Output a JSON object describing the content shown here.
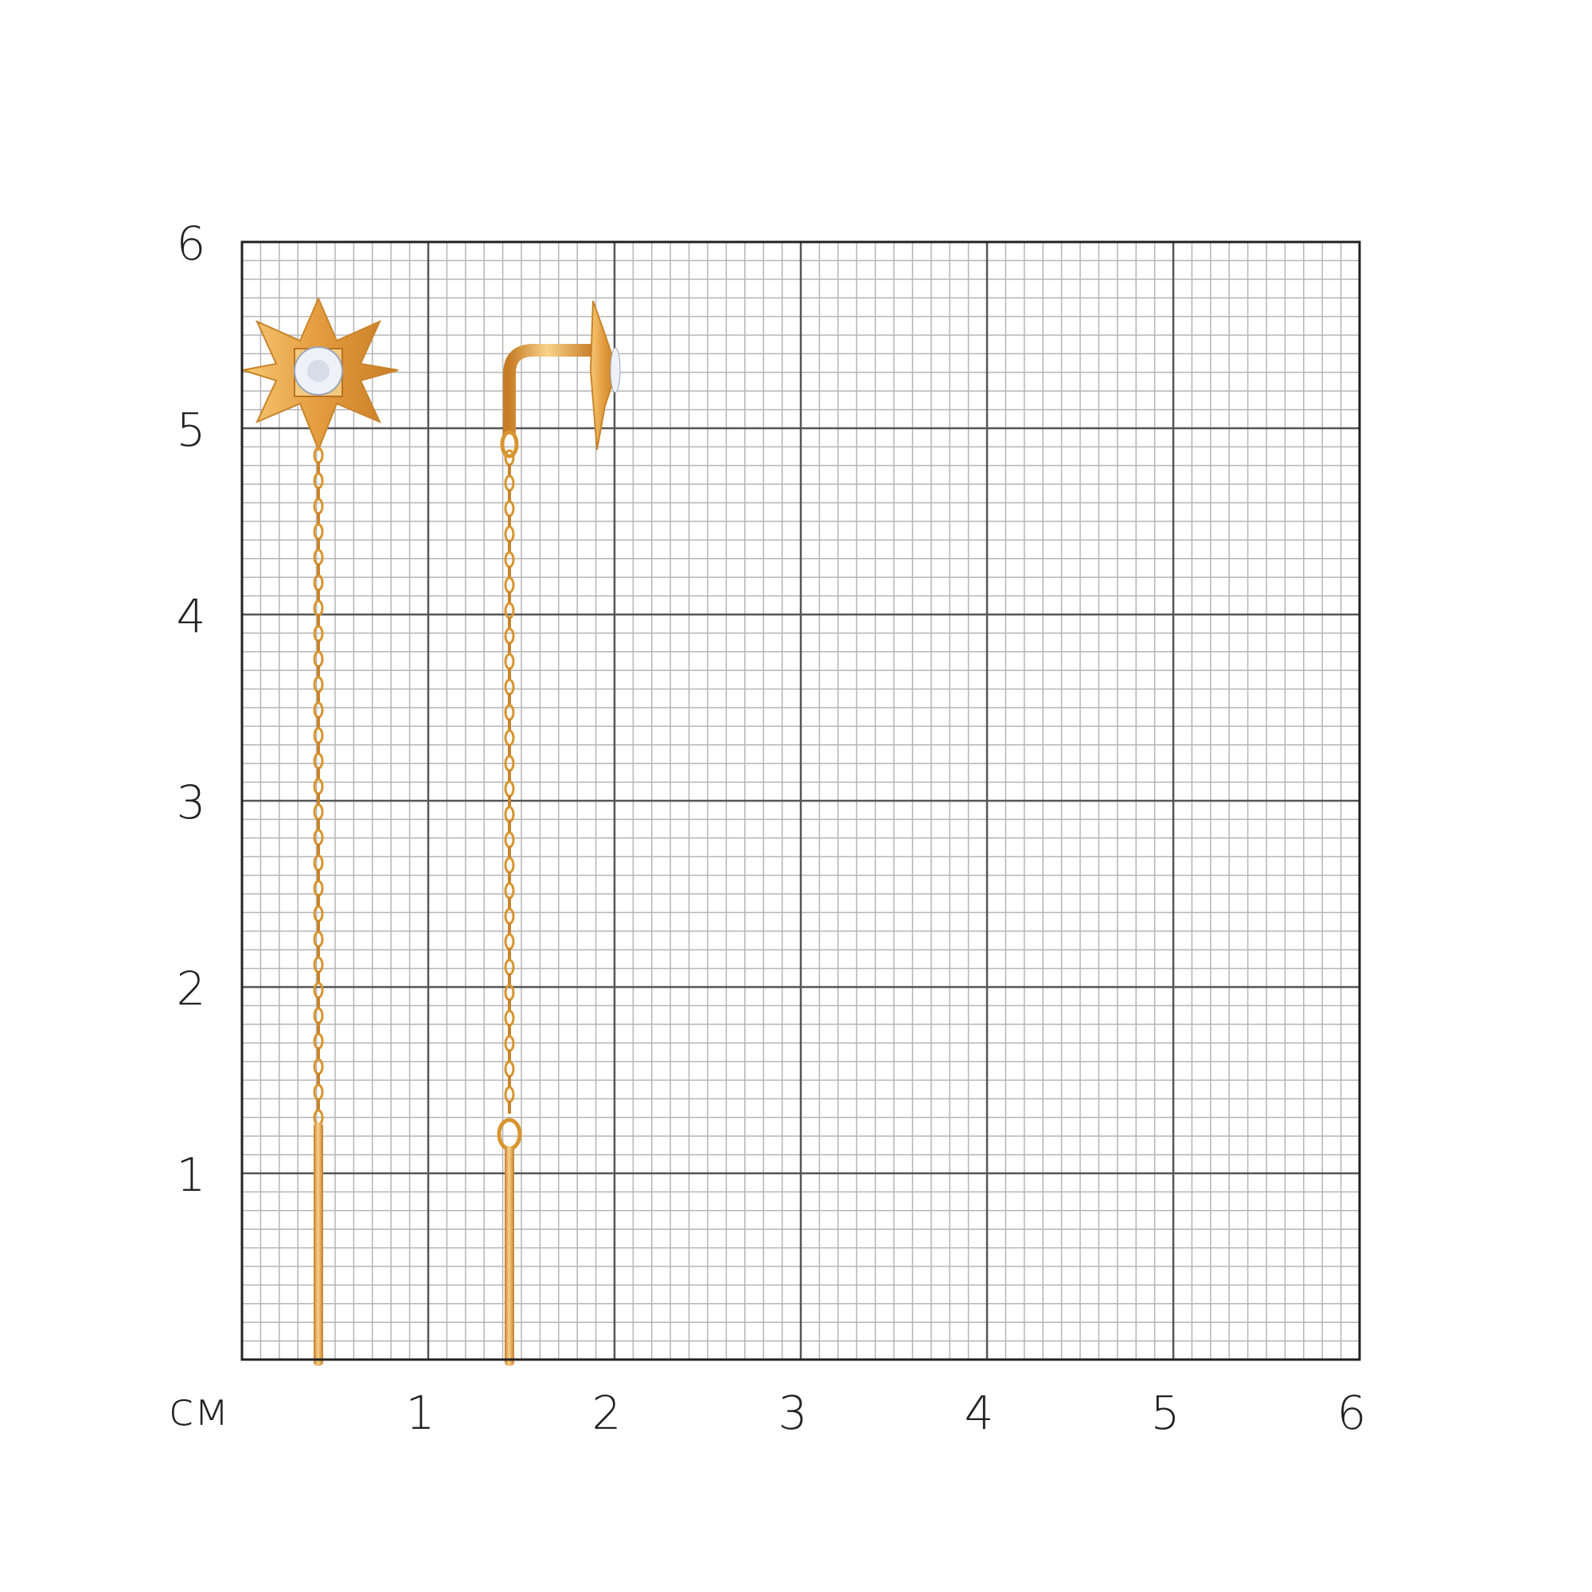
{
  "ruler": {
    "unit": "см",
    "x_ticks": [
      "1",
      "2",
      "3",
      "4",
      "5",
      "6"
    ],
    "y_ticks": [
      "1",
      "2",
      "3",
      "4",
      "5",
      "6"
    ]
  },
  "colors": {
    "gold": "#e8a94a",
    "gold_dark": "#c9832a",
    "grid_major": "#555555",
    "grid_minor": "#b5b5b5",
    "stone": "#eef2f8"
  }
}
